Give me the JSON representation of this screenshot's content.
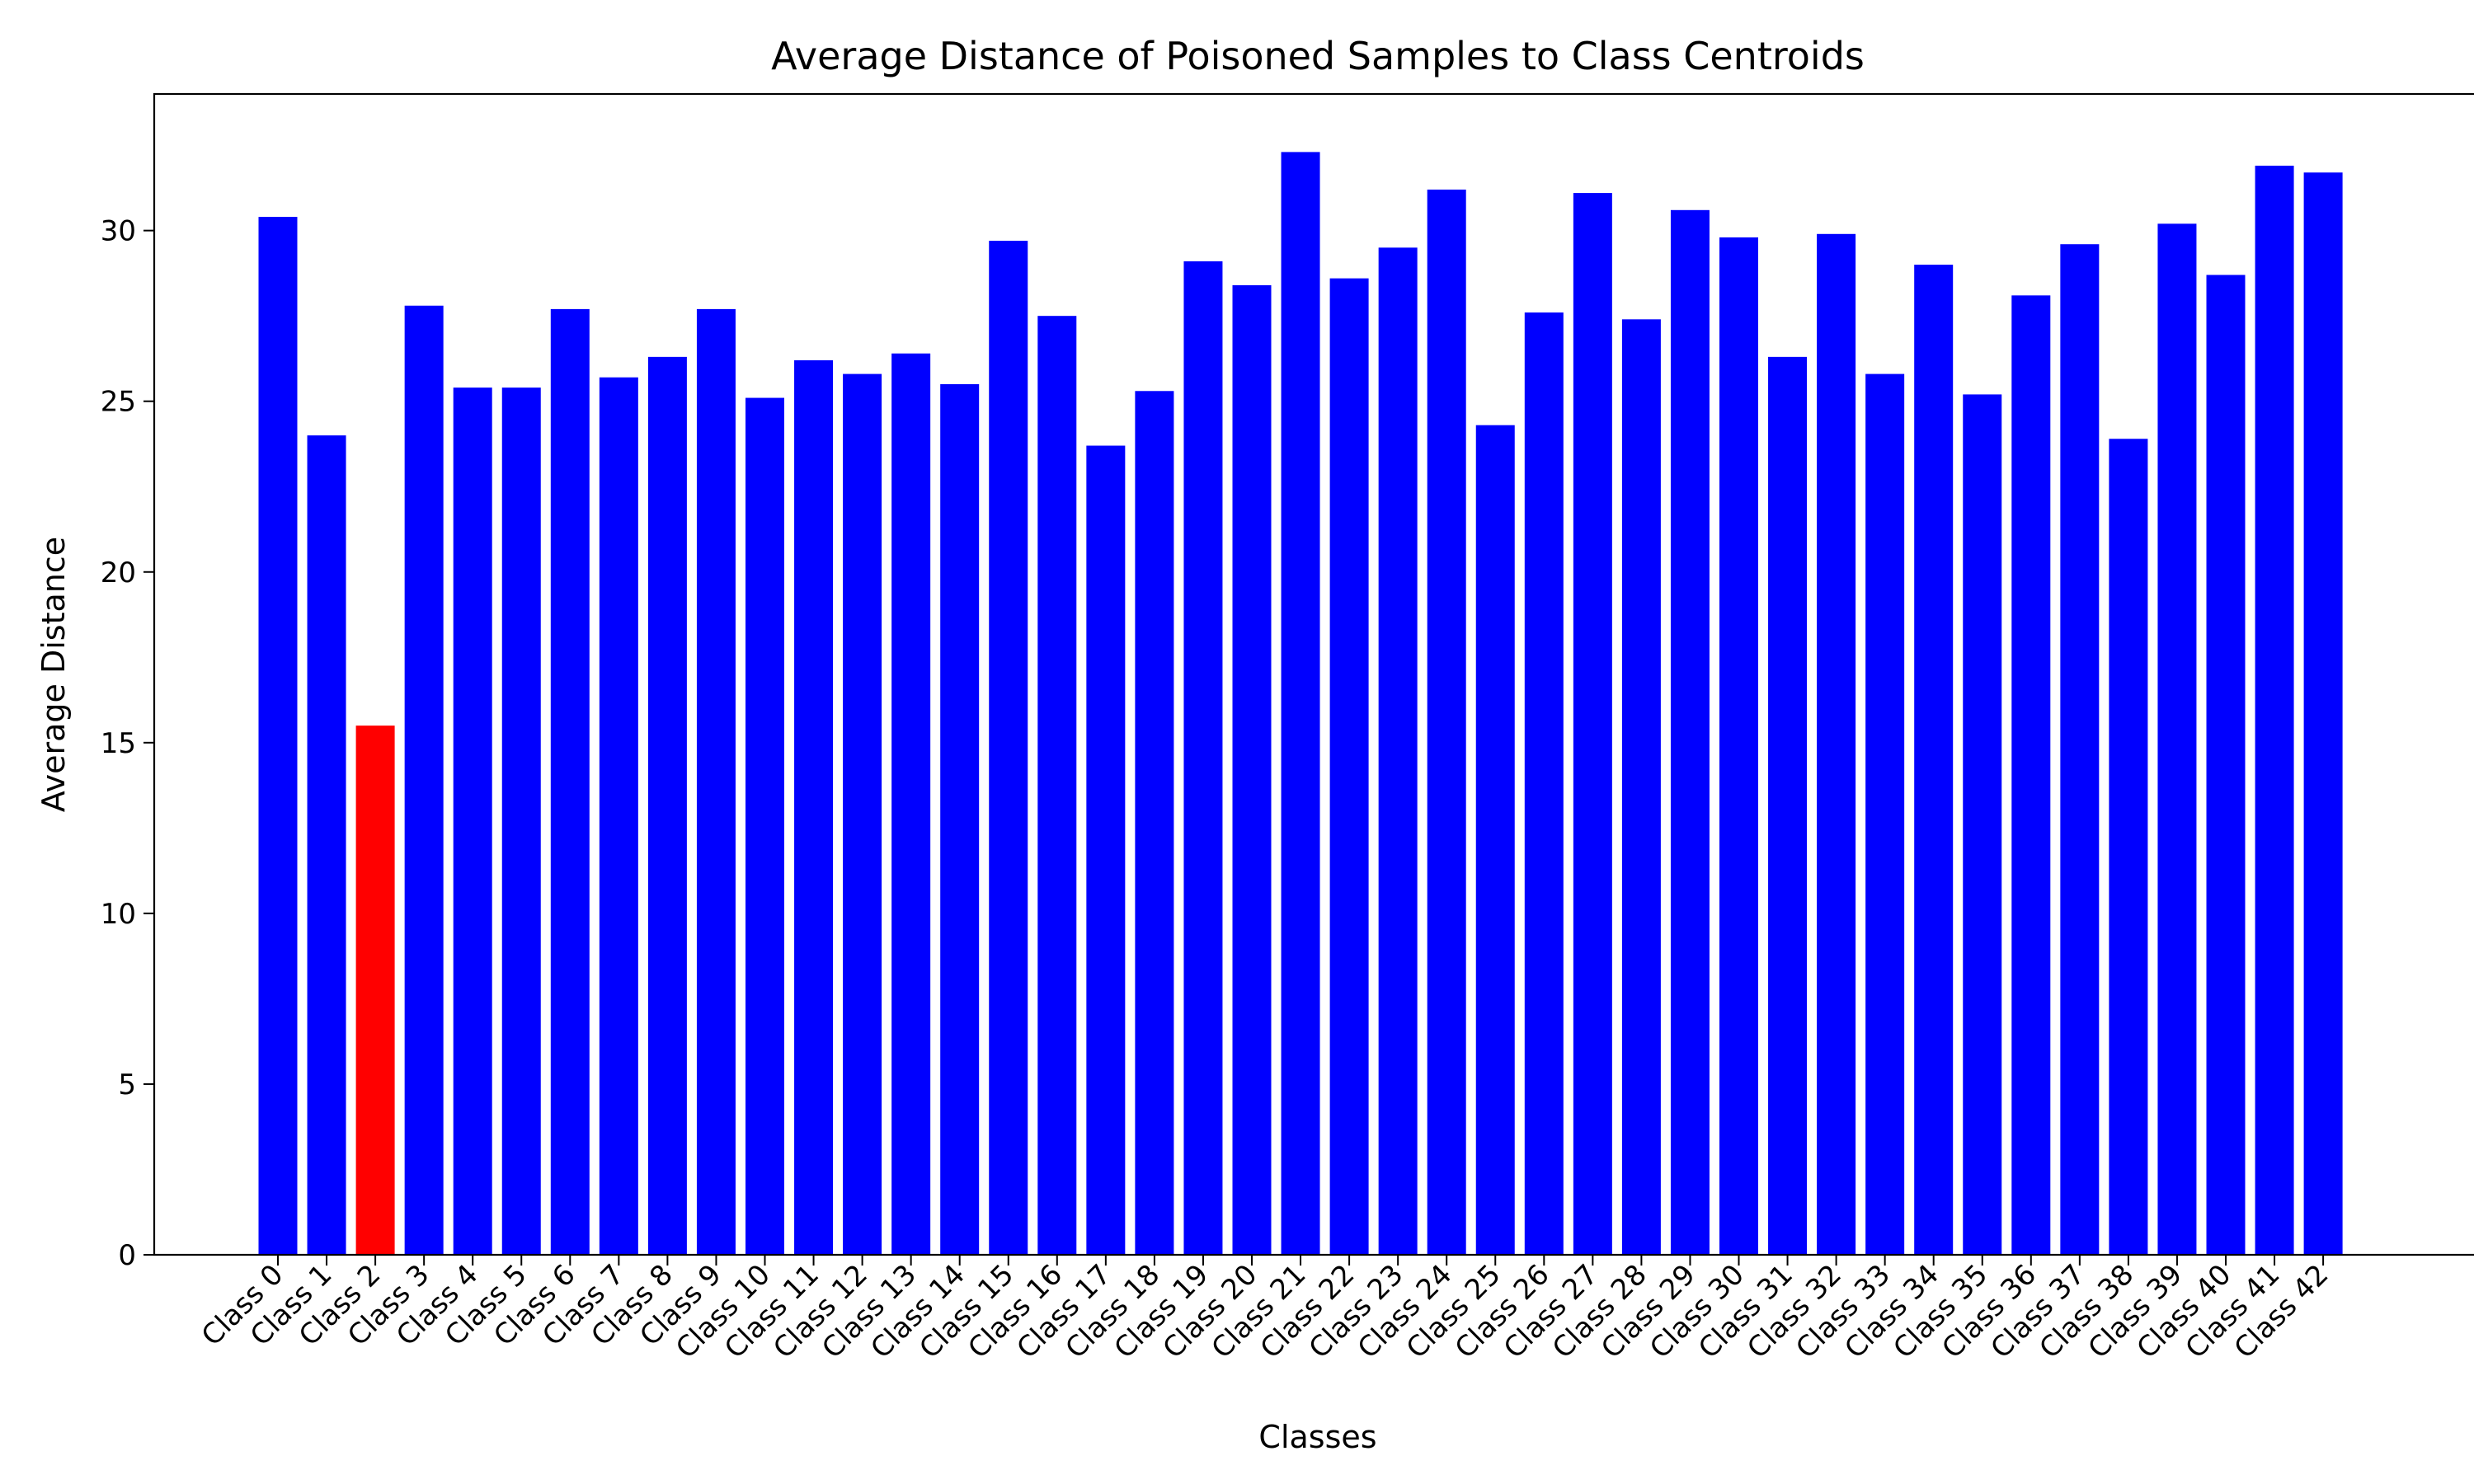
{
  "chart_data": {
    "type": "bar",
    "title": "Average Distance of Poisoned Samples to Class Centroids",
    "xlabel": "Classes",
    "ylabel": "Average Distance",
    "ylim": [
      0,
      34
    ],
    "yticks": [
      0,
      5,
      10,
      15,
      20,
      25,
      30
    ],
    "grid": false,
    "categories": [
      "Class 0",
      "Class 1",
      "Class 2",
      "Class 3",
      "Class 4",
      "Class 5",
      "Class 6",
      "Class 7",
      "Class 8",
      "Class 9",
      "Class 10",
      "Class 11",
      "Class 12",
      "Class 13",
      "Class 14",
      "Class 15",
      "Class 16",
      "Class 17",
      "Class 18",
      "Class 19",
      "Class 20",
      "Class 21",
      "Class 22",
      "Class 23",
      "Class 24",
      "Class 25",
      "Class 26",
      "Class 27",
      "Class 28",
      "Class 29",
      "Class 30",
      "Class 31",
      "Class 32",
      "Class 33",
      "Class 34",
      "Class 35",
      "Class 36",
      "Class 37",
      "Class 38",
      "Class 39",
      "Class 40",
      "Class 41",
      "Class 42"
    ],
    "values": [
      30.4,
      24.0,
      15.5,
      27.8,
      25.4,
      25.4,
      27.7,
      25.7,
      26.3,
      27.7,
      25.1,
      26.2,
      25.8,
      26.4,
      25.5,
      29.7,
      27.5,
      23.7,
      25.3,
      29.1,
      28.4,
      32.3,
      28.6,
      29.5,
      31.2,
      24.3,
      27.6,
      31.1,
      27.4,
      30.6,
      29.8,
      26.3,
      29.9,
      25.8,
      29.0,
      25.2,
      28.1,
      29.6,
      23.9,
      30.2,
      28.7,
      31.9,
      31.7
    ],
    "colors": {
      "default": "#0000ff",
      "highlight": "#ff0000"
    },
    "highlight_index": 2
  }
}
